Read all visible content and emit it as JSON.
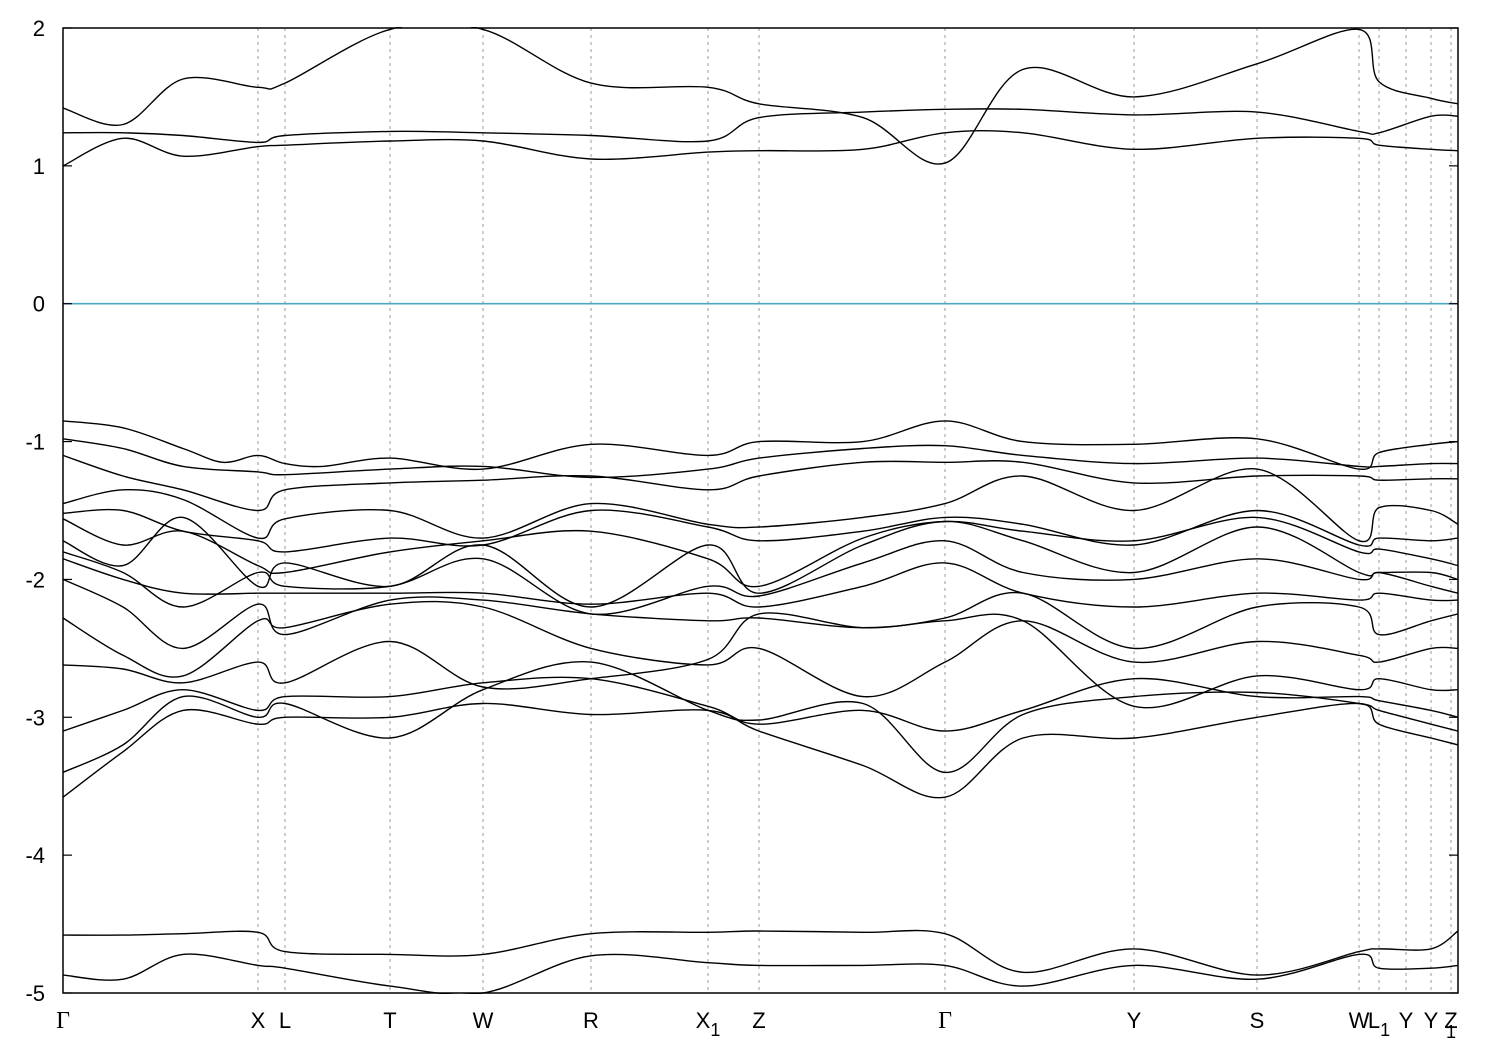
{
  "chart_data": {
    "type": "line",
    "title": "",
    "xlabel": "",
    "ylabel": "",
    "ylim": [
      -5,
      2
    ],
    "yticks": [
      2,
      1,
      0,
      -1,
      -2,
      -3,
      -4,
      -5
    ],
    "ytick_labels": [
      "2",
      "1",
      "0",
      "-1",
      "-2",
      "-3",
      "-4",
      "-5"
    ],
    "xlim": [
      0,
      1395
    ],
    "kpoints": [
      {
        "label": "Γ",
        "sub": "",
        "x": 0,
        "greek": true
      },
      {
        "label": "X",
        "sub": "",
        "x": 195
      },
      {
        "label": "L",
        "sub": "",
        "x": 222
      },
      {
        "label": "T",
        "sub": "",
        "x": 327
      },
      {
        "label": "W",
        "sub": "",
        "x": 420
      },
      {
        "label": "R",
        "sub": "",
        "x": 528
      },
      {
        "label": "X",
        "sub": "1",
        "x": 645
      },
      {
        "label": "Z",
        "sub": "",
        "x": 696
      },
      {
        "label": "Γ",
        "sub": "",
        "x": 882,
        "greek": true
      },
      {
        "label": "Y",
        "sub": "",
        "x": 1071
      },
      {
        "label": "S",
        "sub": "",
        "x": 1194
      },
      {
        "label": "W",
        "sub": "",
        "x": 1296
      },
      {
        "label": "L",
        "sub": "1",
        "x": 1316
      },
      {
        "label": "Y",
        "sub": "",
        "x": 1343
      },
      {
        "label": "Y",
        "sub": "",
        "x": 1368
      },
      {
        "label": "Z",
        "sub": "",
        "x": 1388
      },
      {
        "label": "",
        "sub": "1",
        "x": 1388
      }
    ],
    "fermi_level": 0,
    "grid": "vertical dashed at k-points",
    "series": [
      {
        "x": [
          0,
          60,
          120,
          195,
          222,
          327,
          420,
          528,
          645,
          696,
          800,
          882,
          960,
          1071,
          1194,
          1296,
          1316,
          1368,
          1395
        ],
        "values": [
          1.42,
          1.3,
          1.63,
          1.57,
          1.6,
          1.99,
          1.99,
          1.6,
          1.57,
          1.45,
          1.35,
          1.02,
          1.7,
          1.5,
          1.74,
          1.99,
          1.61,
          1.49,
          1.45
        ]
      },
      {
        "x": [
          0,
          60,
          120,
          195,
          222,
          327,
          420,
          528,
          645,
          696,
          800,
          882,
          960,
          1071,
          1194,
          1296,
          1316,
          1368,
          1395
        ],
        "values": [
          1.24,
          1.24,
          1.22,
          1.17,
          1.22,
          1.25,
          1.24,
          1.22,
          1.18,
          1.35,
          1.39,
          1.41,
          1.41,
          1.37,
          1.39,
          1.25,
          1.24,
          1.36,
          1.36
        ]
      },
      {
        "x": [
          0,
          60,
          120,
          195,
          222,
          327,
          420,
          528,
          645,
          696,
          800,
          882,
          960,
          1071,
          1194,
          1296,
          1316,
          1368,
          1395
        ],
        "values": [
          1.0,
          1.2,
          1.07,
          1.14,
          1.15,
          1.18,
          1.18,
          1.05,
          1.1,
          1.11,
          1.12,
          1.24,
          1.24,
          1.12,
          1.2,
          1.2,
          1.15,
          1.12,
          1.11
        ]
      },
      {
        "x": [
          0,
          60,
          120,
          160,
          195,
          222,
          260,
          327,
          420,
          528,
          645,
          696,
          800,
          882,
          960,
          1071,
          1194,
          1296,
          1316,
          1368,
          1395
        ],
        "values": [
          -0.85,
          -0.9,
          -1.05,
          -1.15,
          -1.1,
          -1.16,
          -1.18,
          -1.12,
          -1.2,
          -1.02,
          -1.1,
          -1.0,
          -1.0,
          -0.85,
          -1.0,
          -1.02,
          -0.98,
          -1.2,
          -1.08,
          -1.02,
          -1.0
        ]
      },
      {
        "x": [
          0,
          60,
          120,
          195,
          222,
          327,
          420,
          528,
          645,
          696,
          800,
          882,
          960,
          1071,
          1194,
          1296,
          1316,
          1368,
          1395
        ],
        "values": [
          -0.98,
          -1.05,
          -1.18,
          -1.22,
          -1.24,
          -1.2,
          -1.18,
          -1.26,
          -1.2,
          -1.12,
          -1.05,
          -1.03,
          -1.1,
          -1.16,
          -1.12,
          -1.18,
          -1.18,
          -1.16,
          -1.16
        ]
      },
      {
        "x": [
          0,
          60,
          120,
          195,
          222,
          327,
          420,
          528,
          645,
          696,
          800,
          882,
          960,
          1071,
          1194,
          1296,
          1316,
          1368,
          1395
        ],
        "values": [
          -1.1,
          -1.25,
          -1.35,
          -1.5,
          -1.35,
          -1.3,
          -1.28,
          -1.25,
          -1.35,
          -1.25,
          -1.15,
          -1.15,
          -1.15,
          -1.3,
          -1.25,
          -1.25,
          -1.28,
          -1.27,
          -1.27
        ]
      },
      {
        "x": [
          0,
          60,
          120,
          195,
          222,
          327,
          420,
          528,
          645,
          696,
          800,
          882,
          960,
          1071,
          1194,
          1296,
          1316,
          1368,
          1395
        ],
        "values": [
          -1.45,
          -1.35,
          -1.42,
          -1.7,
          -1.56,
          -1.5,
          -1.7,
          -1.45,
          -1.6,
          -1.62,
          -1.55,
          -1.45,
          -1.25,
          -1.5,
          -1.2,
          -1.72,
          -1.48,
          -1.5,
          -1.6
        ]
      },
      {
        "x": [
          0,
          60,
          120,
          195,
          222,
          327,
          420,
          528,
          645,
          696,
          800,
          882,
          960,
          1071,
          1194,
          1296,
          1316,
          1368,
          1395
        ],
        "values": [
          -1.52,
          -1.5,
          -1.65,
          -1.72,
          -1.8,
          -1.7,
          -1.75,
          -1.5,
          -1.62,
          -1.72,
          -1.65,
          -1.55,
          -1.6,
          -1.75,
          -1.5,
          -1.75,
          -1.7,
          -1.72,
          -1.7
        ]
      },
      {
        "x": [
          0,
          60,
          120,
          195,
          222,
          327,
          420,
          528,
          645,
          696,
          800,
          882,
          960,
          1071,
          1194,
          1296,
          1316,
          1368,
          1395
        ],
        "values": [
          -1.56,
          -1.75,
          -1.65,
          -1.9,
          -1.95,
          -1.8,
          -1.72,
          -1.65,
          -1.85,
          -2.05,
          -1.7,
          -1.58,
          -1.65,
          -1.72,
          -1.55,
          -1.8,
          -1.78,
          -1.85,
          -1.9
        ]
      },
      {
        "x": [
          0,
          60,
          120,
          195,
          222,
          327,
          420,
          528,
          645,
          696,
          800,
          882,
          960,
          1071,
          1194,
          1296,
          1316,
          1368,
          1395
        ],
        "values": [
          -1.72,
          -1.9,
          -1.55,
          -2.05,
          -1.88,
          -2.05,
          -1.75,
          -2.2,
          -1.75,
          -2.1,
          -1.75,
          -1.58,
          -1.72,
          -1.95,
          -1.62,
          -1.95,
          -1.95,
          -1.95,
          -2.0
        ]
      },
      {
        "x": [
          0,
          60,
          120,
          195,
          222,
          327,
          420,
          528,
          645,
          696,
          800,
          882,
          960,
          1071,
          1194,
          1296,
          1316,
          1368,
          1395
        ],
        "values": [
          -1.8,
          -1.95,
          -2.2,
          -1.95,
          -2.05,
          -2.05,
          -1.85,
          -2.25,
          -2.05,
          -2.12,
          -1.88,
          -1.72,
          -1.95,
          -2.0,
          -1.85,
          -2.0,
          -1.95,
          -2.05,
          -2.1
        ]
      },
      {
        "x": [
          0,
          60,
          120,
          195,
          222,
          327,
          420,
          528,
          645,
          696,
          800,
          882,
          960,
          1071,
          1194,
          1296,
          1316,
          1368,
          1395
        ],
        "values": [
          -1.85,
          -2.0,
          -2.1,
          -2.1,
          -2.1,
          -2.1,
          -2.1,
          -2.18,
          -2.1,
          -2.2,
          -2.05,
          -1.88,
          -2.1,
          -2.2,
          -2.1,
          -2.15,
          -2.1,
          -2.15,
          -2.15
        ]
      },
      {
        "x": [
          0,
          60,
          120,
          195,
          222,
          327,
          420,
          528,
          645,
          696,
          800,
          882,
          960,
          1071,
          1194,
          1296,
          1316,
          1368,
          1395
        ],
        "values": [
          -2.0,
          -2.2,
          -2.5,
          -2.18,
          -2.4,
          -2.15,
          -2.15,
          -2.25,
          -2.3,
          -2.28,
          -2.35,
          -2.28,
          -2.1,
          -2.5,
          -2.2,
          -2.2,
          -2.4,
          -2.3,
          -2.25
        ]
      },
      {
        "x": [
          0,
          60,
          120,
          195,
          222,
          327,
          420,
          528,
          645,
          696,
          800,
          882,
          960,
          1071,
          1194,
          1296,
          1316,
          1368,
          1395
        ],
        "values": [
          -2.28,
          -2.55,
          -2.7,
          -2.3,
          -2.35,
          -2.18,
          -2.2,
          -2.5,
          -2.62,
          -2.5,
          -2.85,
          -2.6,
          -2.3,
          -2.6,
          -2.45,
          -2.55,
          -2.6,
          -2.5,
          -2.5
        ]
      },
      {
        "x": [
          0,
          60,
          120,
          195,
          222,
          327,
          420,
          528,
          645,
          696,
          800,
          882,
          960,
          1071,
          1194,
          1296,
          1316,
          1368,
          1395
        ],
        "values": [
          -2.62,
          -2.65,
          -2.75,
          -2.6,
          -2.75,
          -2.45,
          -2.78,
          -2.72,
          -2.58,
          -2.25,
          -2.35,
          -2.3,
          -2.3,
          -2.92,
          -2.7,
          -2.8,
          -2.72,
          -2.8,
          -2.8
        ]
      },
      {
        "x": [
          0,
          60,
          120,
          195,
          222,
          327,
          420,
          528,
          645,
          696,
          800,
          882,
          960,
          1071,
          1194,
          1296,
          1316,
          1368,
          1395
        ],
        "values": [
          -3.1,
          -2.95,
          -2.8,
          -2.95,
          -2.85,
          -2.85,
          -2.75,
          -2.72,
          -2.92,
          -3.05,
          -2.95,
          -3.1,
          -2.95,
          -2.72,
          -2.85,
          -2.85,
          -2.88,
          -2.95,
          -3.0
        ]
      },
      {
        "x": [
          0,
          60,
          120,
          195,
          222,
          327,
          420,
          528,
          645,
          696,
          800,
          882,
          960,
          1071,
          1194,
          1296,
          1316,
          1368,
          1395
        ],
        "values": [
          -3.4,
          -3.2,
          -2.85,
          -3.0,
          -2.9,
          -3.15,
          -2.8,
          -2.6,
          -2.95,
          -3.02,
          -2.9,
          -3.4,
          -2.98,
          -2.85,
          -2.82,
          -2.9,
          -2.95,
          -3.05,
          -3.1
        ]
      },
      {
        "x": [
          0,
          60,
          120,
          195,
          222,
          327,
          420,
          528,
          645,
          696,
          800,
          882,
          960,
          1071,
          1194,
          1296,
          1316,
          1368,
          1395
        ],
        "values": [
          -3.58,
          -3.25,
          -2.95,
          -3.05,
          -3.0,
          -3.0,
          -2.9,
          -2.98,
          -2.95,
          -3.1,
          -3.35,
          -3.58,
          -3.15,
          -3.15,
          -3.0,
          -2.9,
          -3.05,
          -3.15,
          -3.2
        ]
      },
      {
        "x": [
          0,
          60,
          120,
          195,
          222,
          327,
          420,
          528,
          645,
          696,
          800,
          882,
          960,
          1071,
          1194,
          1296,
          1316,
          1368,
          1395
        ],
        "values": [
          -4.58,
          -4.58,
          -4.57,
          -4.56,
          -4.7,
          -4.72,
          -4.72,
          -4.57,
          -4.56,
          -4.55,
          -4.56,
          -4.57,
          -4.85,
          -4.68,
          -4.87,
          -4.7,
          -4.68,
          -4.68,
          -4.55
        ]
      },
      {
        "x": [
          0,
          60,
          120,
          195,
          222,
          327,
          420,
          528,
          645,
          696,
          800,
          882,
          960,
          1071,
          1194,
          1296,
          1316,
          1368,
          1395
        ],
        "values": [
          -4.87,
          -4.9,
          -4.72,
          -4.8,
          -4.82,
          -4.95,
          -5.0,
          -4.73,
          -4.78,
          -4.8,
          -4.8,
          -4.8,
          -4.95,
          -4.8,
          -4.9,
          -4.72,
          -4.82,
          -4.82,
          -4.8
        ]
      }
    ]
  }
}
